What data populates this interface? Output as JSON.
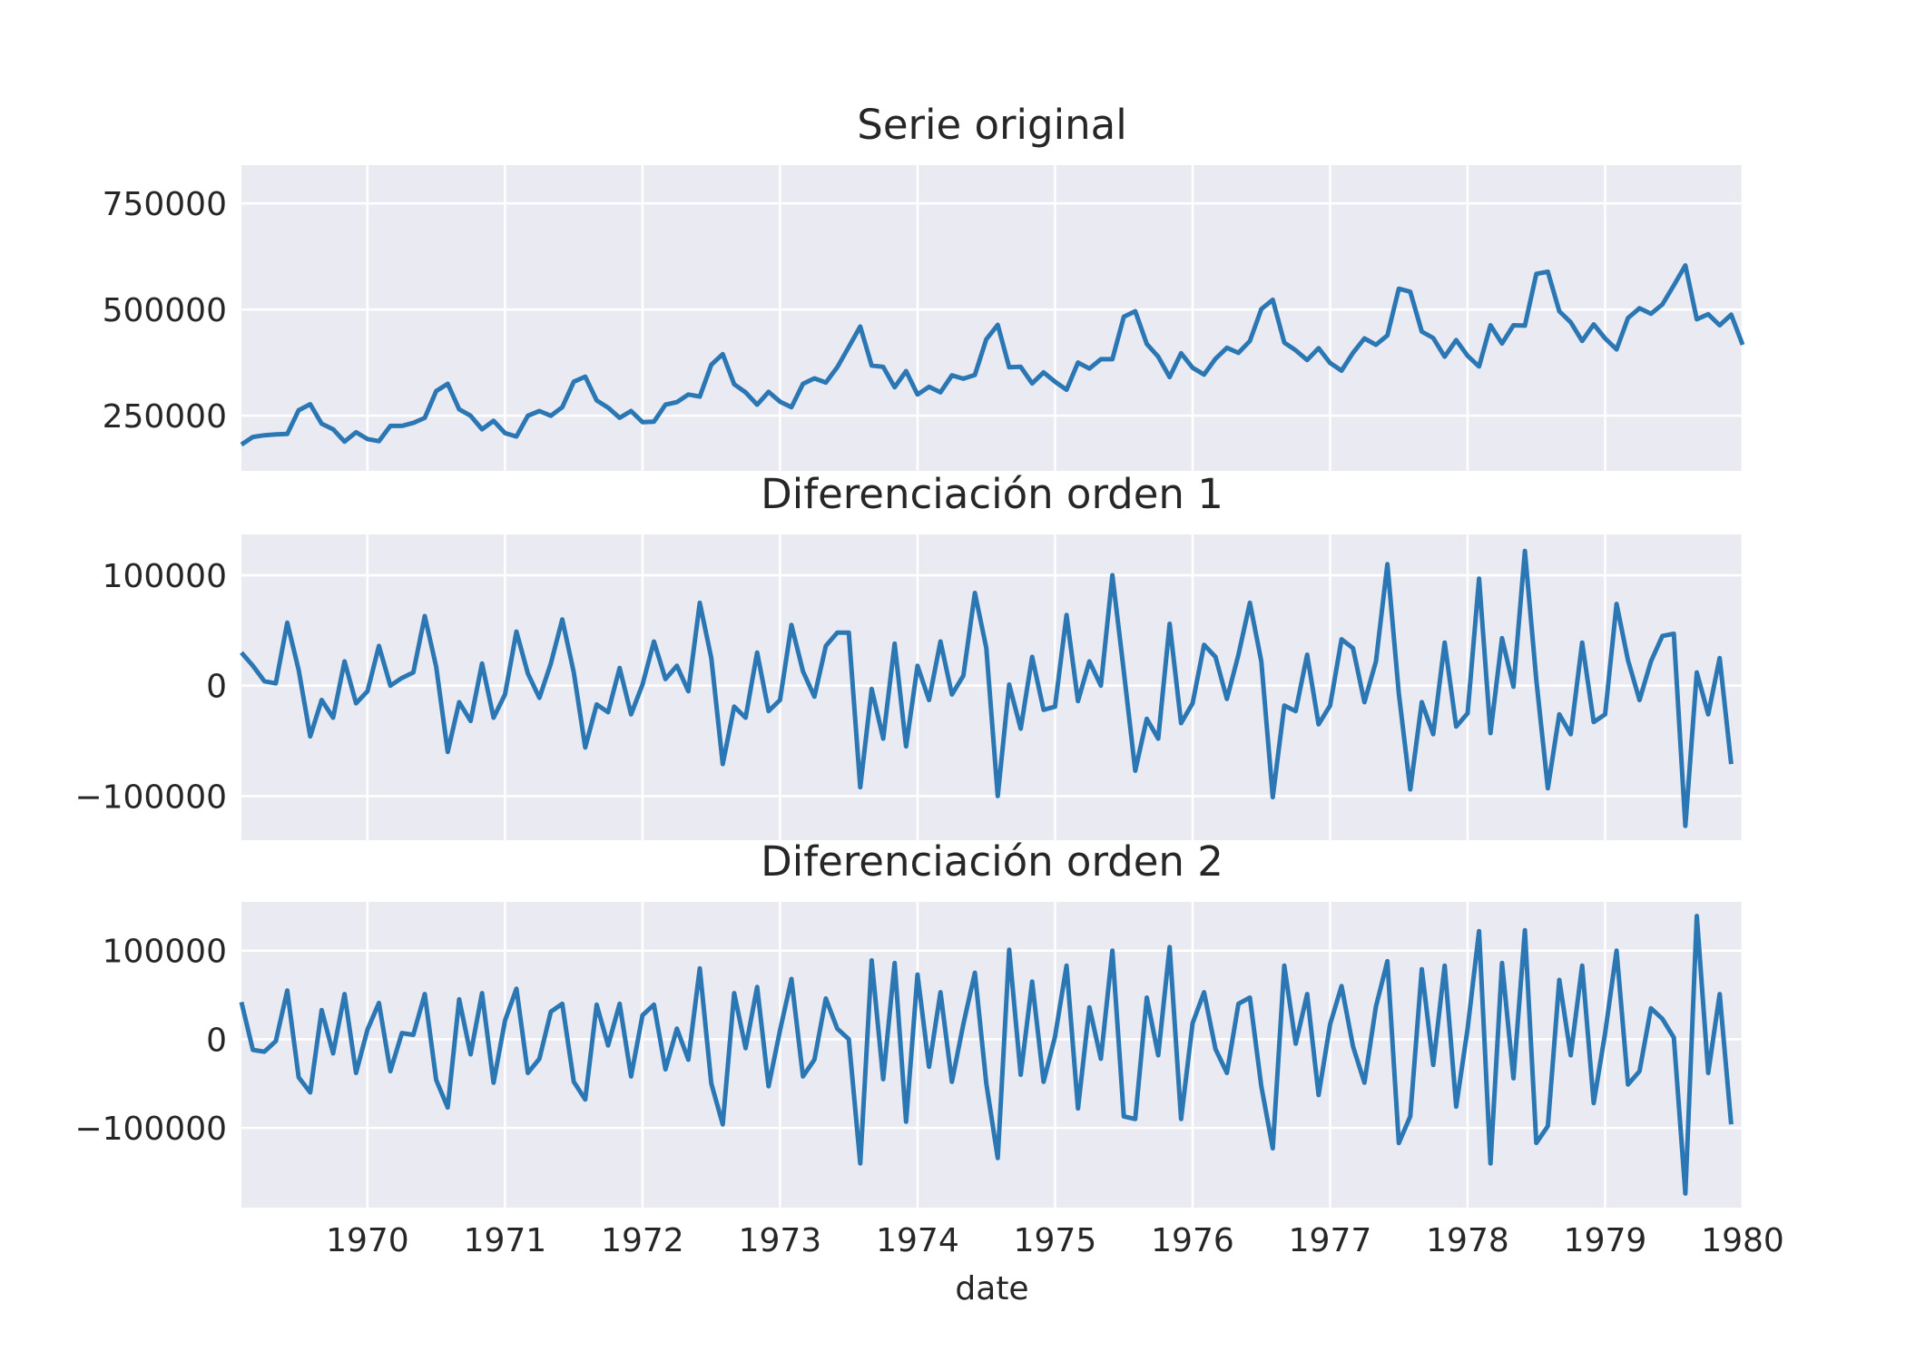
{
  "colors": {
    "background": "#eaeaf2",
    "grid": "#ffffff",
    "series": "#2a77b4",
    "text": "#262626"
  },
  "chart_data": [
    {
      "type": "line",
      "title": "Serie original",
      "xlabel": "",
      "ylabel": "",
      "ylim": [
        120000,
        840000
      ],
      "yticks": [
        250000,
        500000,
        750000
      ],
      "ytick_labels": [
        "250000",
        "500000",
        "750000"
      ],
      "grid": true,
      "x_start": "1969-02",
      "x_end": "1980-01",
      "values": [
        182000,
        200000,
        204000,
        206000,
        207000,
        263000,
        277000,
        231000,
        218000,
        189000,
        211000,
        195000,
        190000,
        226000,
        226000,
        233000,
        245000,
        308000,
        325000,
        265000,
        250000,
        218000,
        238000,
        209000,
        201000,
        250000,
        261000,
        250000,
        270000,
        330000,
        342000,
        286000,
        269000,
        245000,
        261000,
        235000,
        236000,
        276000,
        282000,
        300000,
        295000,
        370000,
        395000,
        324000,
        305000,
        276000,
        306000,
        283000,
        270000,
        325000,
        338000,
        328000,
        364000,
        412000,
        460000,
        368000,
        365000,
        317000,
        355000,
        300000,
        318000,
        305000,
        345000,
        337000,
        346000,
        430000,
        464000,
        364000,
        365000,
        326000,
        352000,
        330000,
        311000,
        375000,
        361000,
        383000,
        383000,
        483000,
        496000,
        419000,
        389000,
        341000,
        397000,
        363000,
        347000,
        384000,
        410000,
        398000,
        426000,
        501000,
        523000,
        422000,
        404000,
        381000,
        409000,
        374000,
        356000,
        398000,
        432000,
        417000,
        439000,
        549000,
        542000,
        448000,
        433000,
        389000,
        428000,
        391000,
        366000,
        463000,
        420000,
        463000,
        462000,
        584000,
        589000,
        496000,
        470000,
        426000,
        465000,
        432000,
        406000,
        480000,
        503000,
        490000,
        512000,
        557000,
        604000,
        477000,
        489000,
        463000,
        488000,
        417000
      ]
    },
    {
      "type": "line",
      "title": "Diferenciación orden 1",
      "xlabel": "",
      "ylabel": "",
      "ylim": [
        -140000,
        137000
      ],
      "yticks": [
        -100000,
        0,
        100000
      ],
      "ytick_labels": [
        "−100000",
        "0",
        "100000"
      ],
      "grid": true,
      "x_start": "1969-02",
      "x_end": "1980-01",
      "values": [
        30000,
        18000,
        4000,
        2000,
        57000,
        14000,
        -46000,
        -13000,
        -29000,
        22000,
        -16000,
        -5000,
        36000,
        0,
        7000,
        12000,
        63000,
        17000,
        -60000,
        -15000,
        -32000,
        20000,
        -29000,
        -8000,
        49000,
        11000,
        -11000,
        20000,
        60000,
        12000,
        -56000,
        -17000,
        -24000,
        16000,
        -26000,
        1000,
        40000,
        6000,
        18000,
        -5000,
        75000,
        25000,
        -71000,
        -19000,
        -29000,
        30000,
        -23000,
        -13000,
        55000,
        13000,
        -10000,
        36000,
        48000,
        48000,
        -92000,
        -3000,
        -48000,
        38000,
        -55000,
        18000,
        -13000,
        40000,
        -8000,
        9000,
        84000,
        34000,
        -100000,
        1000,
        -39000,
        26000,
        -22000,
        -19000,
        64000,
        -14000,
        22000,
        0,
        100000,
        13000,
        -77000,
        -30000,
        -48000,
        56000,
        -34000,
        -16000,
        37000,
        26000,
        -12000,
        28000,
        75000,
        22000,
        -101000,
        -18000,
        -23000,
        28000,
        -35000,
        -18000,
        42000,
        34000,
        -15000,
        22000,
        110000,
        -7000,
        -94000,
        -15000,
        -44000,
        39000,
        -37000,
        -25000,
        97000,
        -43000,
        43000,
        -1000,
        122000,
        5000,
        -93000,
        -26000,
        -44000,
        39000,
        -33000,
        -26000,
        74000,
        23000,
        -13000,
        22000,
        45000,
        47000,
        -127000,
        12000,
        -26000,
        25000,
        -71000
      ]
    },
    {
      "type": "line",
      "title": "Diferenciación orden 2",
      "xlabel": "date",
      "ylabel": "",
      "ylim": [
        -190000,
        155000
      ],
      "yticks": [
        -100000,
        0,
        100000
      ],
      "ytick_labels": [
        "−100000",
        "0",
        "100000"
      ],
      "xticks": [
        "1970",
        "1971",
        "1972",
        "1973",
        "1974",
        "1975",
        "1976",
        "1977",
        "1978",
        "1979",
        "1980"
      ],
      "grid": true,
      "x_start": "1969-02",
      "x_end": "1980-01",
      "values": [
        42000,
        -12000,
        -14000,
        -2000,
        55000,
        -43000,
        -60000,
        33000,
        -16000,
        51000,
        -38000,
        11000,
        41000,
        -36000,
        7000,
        5000,
        51000,
        -46000,
        -77000,
        45000,
        -17000,
        52000,
        -49000,
        21000,
        57000,
        -38000,
        -22000,
        31000,
        40000,
        -48000,
        -68000,
        39000,
        -7000,
        40000,
        -42000,
        27000,
        39000,
        -34000,
        12000,
        -23000,
        80000,
        -50000,
        -96000,
        52000,
        -10000,
        59000,
        -53000,
        10000,
        68000,
        -42000,
        -23000,
        46000,
        12000,
        0,
        -140000,
        89000,
        -45000,
        86000,
        -93000,
        73000,
        -31000,
        53000,
        -48000,
        17000,
        75000,
        -50000,
        -134000,
        101000,
        -40000,
        65000,
        -48000,
        3000,
        83000,
        -78000,
        36000,
        -22000,
        100000,
        -87000,
        -90000,
        47000,
        -18000,
        104000,
        -90000,
        18000,
        53000,
        -11000,
        -38000,
        40000,
        47000,
        -53000,
        -123000,
        83000,
        -5000,
        51000,
        -63000,
        17000,
        60000,
        -8000,
        -49000,
        37000,
        88000,
        -117000,
        -87000,
        79000,
        -29000,
        83000,
        -76000,
        12000,
        122000,
        -140000,
        86000,
        -44000,
        123000,
        -117000,
        -98000,
        67000,
        -18000,
        83000,
        -72000,
        7000,
        100000,
        -51000,
        -36000,
        35000,
        23000,
        2000,
        -174000,
        139000,
        -38000,
        51000,
        -96000
      ]
    }
  ]
}
